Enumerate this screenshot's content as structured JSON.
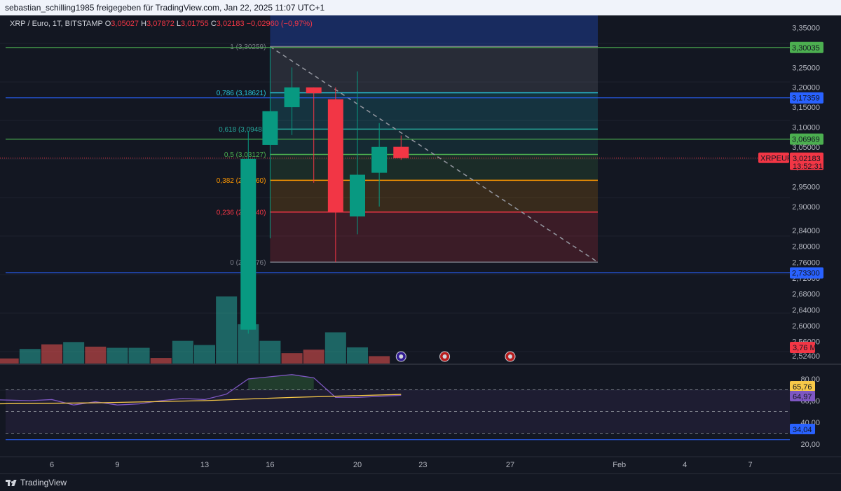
{
  "header": {
    "share_text": "sebastian_schilling1985 freigegeben für TradingView.com, Jan 22, 2025 11:07 UTC+1"
  },
  "footer": {
    "brand": "TradingView"
  },
  "colors": {
    "background": "#131722",
    "up": "#089981",
    "down": "#f23645",
    "axis_text": "#b2b5be",
    "ma": "#f7c948",
    "rsi": "#7e57c2"
  },
  "chart_data": {
    "type": "candlestick",
    "legend": {
      "symbol": "XRP / Euro, 1T, BITSTAMP",
      "open_label": "O",
      "open": "3,05027",
      "high_label": "H",
      "high": "3,07872",
      "low_label": "L",
      "low": "3,01755",
      "close_label": "C",
      "close": "3,02183",
      "change": "−0,02960 (−0,97%)"
    },
    "y_ticks": [
      "3,35000",
      "3,30000",
      "3,25000",
      "3,20000",
      "3,15000",
      "3,10000",
      "3,05000",
      "3,00000",
      "2,95000",
      "2,90000",
      "2,84000",
      "2,80000",
      "2,76000",
      "2,72000",
      "2,68000",
      "2,64000",
      "2,60000",
      "2,56000",
      "2,52400"
    ],
    "x_ticks": [
      {
        "label": "6",
        "date": "2025-01-06"
      },
      {
        "label": "9",
        "date": "2025-01-09"
      },
      {
        "label": "13",
        "date": "2025-01-13"
      },
      {
        "label": "16",
        "date": "2025-01-16"
      },
      {
        "label": "20",
        "date": "2025-01-20"
      },
      {
        "label": "23",
        "date": "2025-01-23"
      },
      {
        "label": "27",
        "date": "2025-01-27"
      },
      {
        "label": "Feb",
        "date": "2025-02-01"
      },
      {
        "label": "4",
        "date": "2025-02-04"
      },
      {
        "label": "7",
        "date": "2025-02-07"
      }
    ],
    "candles": [
      {
        "date": "2025-01-15",
        "open": 2.59,
        "high": 3.09,
        "low": 2.58,
        "close": 3.02
      },
      {
        "date": "2025-01-16",
        "open": 3.055,
        "high": 3.3,
        "low": 2.82,
        "close": 3.14
      },
      {
        "date": "2025-01-17",
        "open": 3.15,
        "high": 3.25,
        "low": 3.08,
        "close": 3.2
      },
      {
        "date": "2025-01-18",
        "open": 3.2,
        "high": 3.2,
        "low": 2.96,
        "close": 3.185
      },
      {
        "date": "2025-01-19",
        "open": 3.17,
        "high": 3.2,
        "low": 2.76,
        "close": 2.885
      },
      {
        "date": "2025-01-20",
        "open": 2.875,
        "high": 3.24,
        "low": 2.83,
        "close": 2.98
      },
      {
        "date": "2025-01-21",
        "open": 2.985,
        "high": 3.11,
        "low": 2.9,
        "close": 3.05
      },
      {
        "date": "2025-01-22",
        "open": 3.05027,
        "high": 3.07872,
        "low": 3.01755,
        "close": 3.02183
      }
    ],
    "volume": [
      {
        "date": "2025-01-03",
        "value": 0.28,
        "dir": "down"
      },
      {
        "date": "2025-01-04",
        "value": 0.22,
        "dir": "down"
      },
      {
        "date": "2025-01-05",
        "value": 0.63,
        "dir": "up"
      },
      {
        "date": "2025-01-06",
        "value": 0.83,
        "dir": "down"
      },
      {
        "date": "2025-01-07",
        "value": 0.93,
        "dir": "up"
      },
      {
        "date": "2025-01-08",
        "value": 0.73,
        "dir": "down"
      },
      {
        "date": "2025-01-09",
        "value": 0.68,
        "dir": "up"
      },
      {
        "date": "2025-01-10",
        "value": 0.68,
        "dir": "up"
      },
      {
        "date": "2025-01-11",
        "value": 0.24,
        "dir": "down"
      },
      {
        "date": "2025-01-12",
        "value": 0.98,
        "dir": "up"
      },
      {
        "date": "2025-01-13",
        "value": 0.8,
        "dir": "up"
      },
      {
        "date": "2025-01-14",
        "value": 2.9,
        "dir": "up"
      },
      {
        "date": "2025-01-15",
        "value": 1.7,
        "dir": "up"
      },
      {
        "date": "2025-01-16",
        "value": 0.98,
        "dir": "up"
      },
      {
        "date": "2025-01-17",
        "value": 0.45,
        "dir": "down"
      },
      {
        "date": "2025-01-18",
        "value": 0.6,
        "dir": "down"
      },
      {
        "date": "2025-01-19",
        "value": 1.35,
        "dir": "up"
      },
      {
        "date": "2025-01-20",
        "value": 0.7,
        "dir": "up"
      },
      {
        "date": "2025-01-21",
        "value": 0.32,
        "dir": "down"
      }
    ],
    "volume_tag": "3,76 M",
    "current_price_tag": {
      "label": "XRPEUR",
      "price": "3,02183",
      "countdown": "13:52:31"
    },
    "horizontal_lines": [
      {
        "price": 3.30035,
        "label": "3,30035",
        "color": "#4caf50"
      },
      {
        "price": 3.17359,
        "label": "3,17359",
        "color": "#2962ff"
      },
      {
        "price": 3.06969,
        "label": "3,06969",
        "color": "#4caf50"
      },
      {
        "price": 2.733,
        "label": "2,73300",
        "color": "#2962ff"
      }
    ],
    "fibonacci": {
      "start_date": "2025-01-16",
      "end_date": "2025-01-27",
      "levels": [
        {
          "ratio": "1",
          "price": 3.30259,
          "label": "1 (3,30259)",
          "line": "#787b86",
          "fill": "rgba(120,123,134,0.22)"
        },
        {
          "ratio": "0.786",
          "price": 3.18621,
          "label": "0,786 (3,18621)",
          "line": "#26c6da",
          "fill": "rgba(38,198,218,0.16)"
        },
        {
          "ratio": "0.618",
          "price": 3.09485,
          "label": "0,618 (3,09485",
          "line": "#26a69a",
          "fill": "rgba(38,166,154,0.14)"
        },
        {
          "ratio": "0.5",
          "price": 3.031,
          "label": "0,5 (3,03127)",
          "line": "#4caf50",
          "fill": "rgba(76,175,80,0.14)"
        },
        {
          "ratio": "0.382",
          "price": 2.966,
          "label": "0,382 (2,96660)",
          "line": "#ff9800",
          "fill": "rgba(255,152,0,0.16)"
        },
        {
          "ratio": "0.236",
          "price": 2.886,
          "label": "0,236 (2,88640)",
          "line": "#f23645",
          "fill": "rgba(242,54,69,0.18)"
        },
        {
          "ratio": "0",
          "price": 2.76,
          "label": "0 (2,75976)",
          "line": "#787b86",
          "fill": null
        }
      ],
      "top_band_fill": "rgba(41,98,255,0.28)"
    },
    "events": [
      {
        "date": "2025-01-22",
        "icon": "lightning-icon"
      },
      {
        "date": "2025-01-24",
        "icon": "dividend-icon"
      },
      {
        "date": "2025-01-27",
        "icon": "dividend-icon"
      }
    ],
    "rsi": {
      "y_ticks": [
        "80,00",
        "60,00",
        "40,00",
        "20,00"
      ],
      "levels": [
        70,
        50,
        30
      ],
      "rsi_label": "64,97",
      "ma_label": "65,76",
      "band_label": "34,04",
      "values": [
        {
          "date": "2025-01-03",
          "rsi": 61
        },
        {
          "date": "2025-01-05",
          "rsi": 60
        },
        {
          "date": "2025-01-06",
          "rsi": 61
        },
        {
          "date": "2025-01-07",
          "rsi": 56
        },
        {
          "date": "2025-01-08",
          "rsi": 59
        },
        {
          "date": "2025-01-09",
          "rsi": 56
        },
        {
          "date": "2025-01-10",
          "rsi": 57
        },
        {
          "date": "2025-01-11",
          "rsi": 60
        },
        {
          "date": "2025-01-12",
          "rsi": 62
        },
        {
          "date": "2025-01-13",
          "rsi": 61
        },
        {
          "date": "2025-01-14",
          "rsi": 66
        },
        {
          "date": "2025-01-15",
          "rsi": 80
        },
        {
          "date": "2025-01-16",
          "rsi": 82
        },
        {
          "date": "2025-01-17",
          "rsi": 84
        },
        {
          "date": "2025-01-18",
          "rsi": 81
        },
        {
          "date": "2025-01-19",
          "rsi": 63
        },
        {
          "date": "2025-01-20",
          "rsi": 63
        },
        {
          "date": "2025-01-21",
          "rsi": 64
        },
        {
          "date": "2025-01-22",
          "rsi": 64.97
        }
      ],
      "ma": [
        {
          "date": "2025-01-03",
          "v": 57
        },
        {
          "date": "2025-01-08",
          "v": 58
        },
        {
          "date": "2025-01-13",
          "v": 60
        },
        {
          "date": "2025-01-17",
          "v": 63
        },
        {
          "date": "2025-01-22",
          "v": 65.76
        }
      ]
    }
  }
}
